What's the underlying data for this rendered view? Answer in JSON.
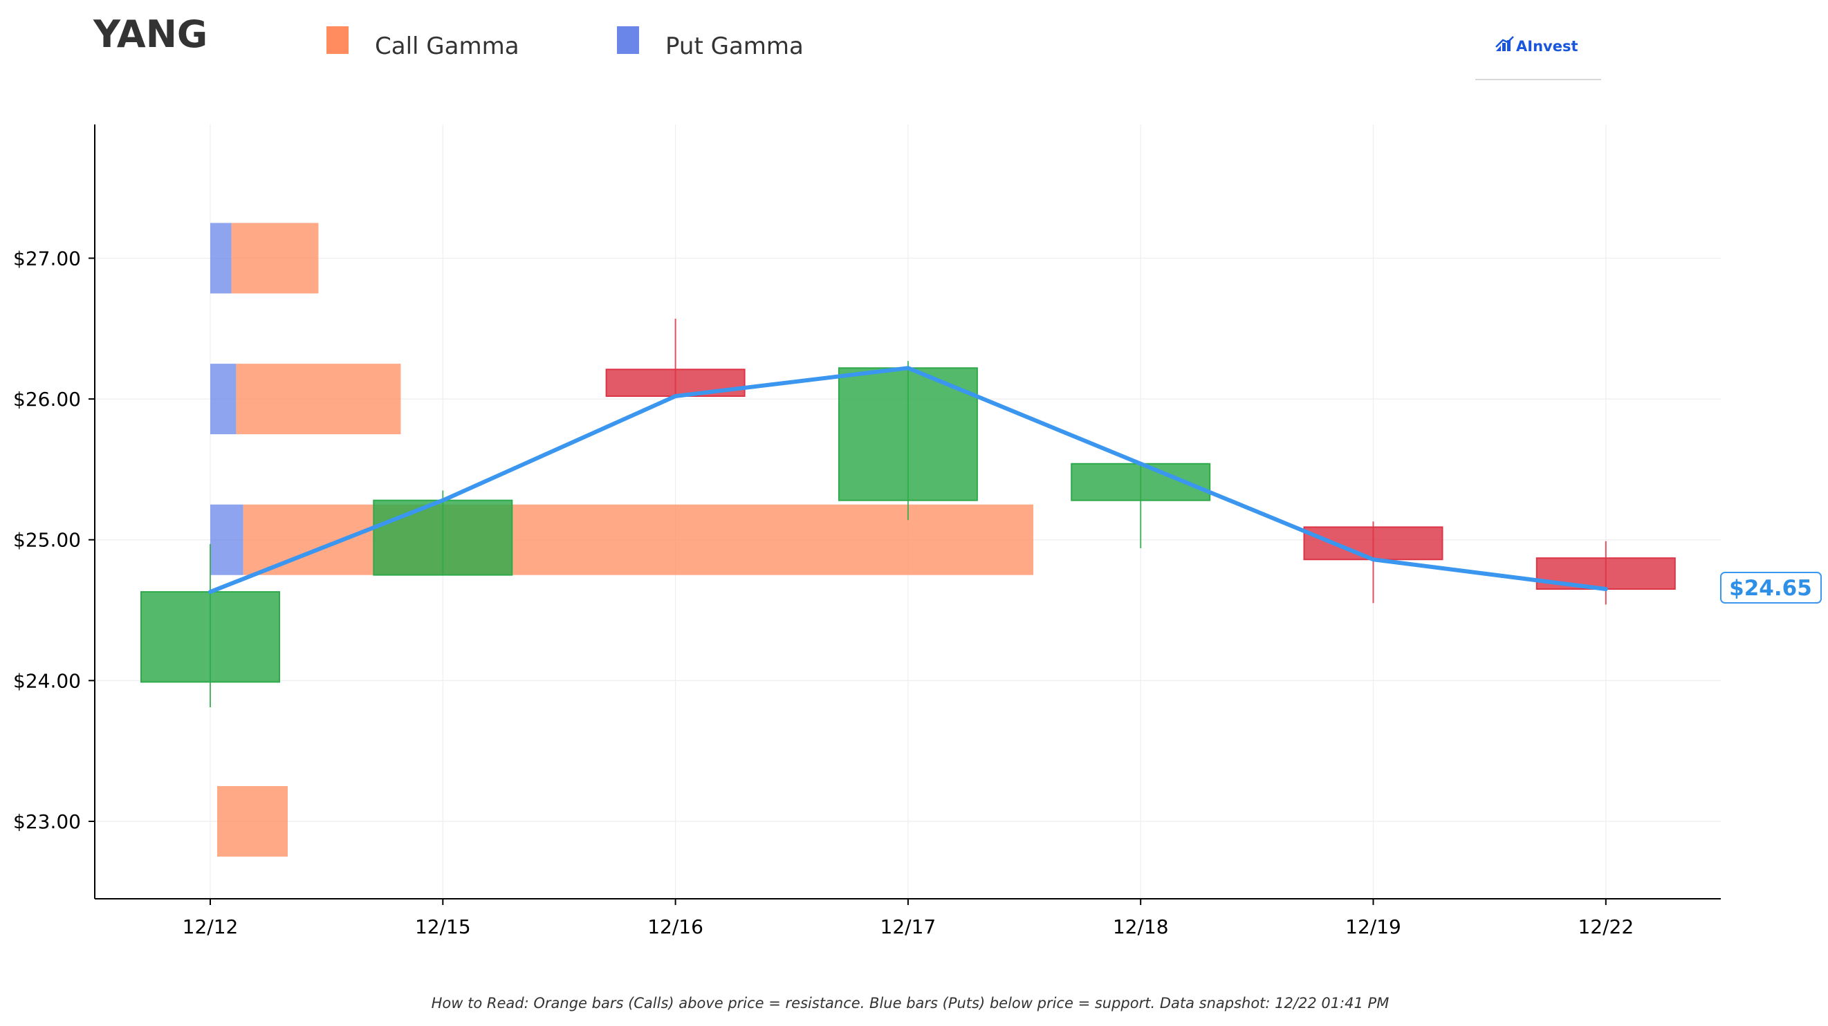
{
  "header": {
    "ticker": "YANG",
    "logo_text": "AInvest",
    "logo_icon": "bar-chart-logo-icon"
  },
  "footer": {
    "note": "How to Read: Orange bars (Calls) above price = resistance. Blue bars (Puts) below price = support. Data snapshot: 12/22 01:41 PM"
  },
  "colors": {
    "call_gamma": "#ff8c5f",
    "put_gamma": "#6a86e8",
    "up_candle": "#2eaa4a",
    "down_candle": "#dc3545",
    "price_line": "#3a96ee",
    "grid": "#eeeeee",
    "axis": "#000000"
  },
  "chart_data": {
    "type": "candlestick",
    "title": "",
    "xlabel": "",
    "ylabel": "",
    "ylim": [
      22.45,
      27.95
    ],
    "yticks": [
      23.0,
      24.0,
      25.0,
      26.0,
      27.0
    ],
    "ytick_labels": [
      "$23.00",
      "$24.00",
      "$25.00",
      "$26.00",
      "$27.00"
    ],
    "grid": true,
    "legend": {
      "placement": "top",
      "entries": [
        {
          "name": "Call Gamma",
          "color": "#ff8c5f"
        },
        {
          "name": "Put Gamma",
          "color": "#6a86e8"
        }
      ]
    },
    "categories": [
      "12/12",
      "12/15",
      "12/16",
      "12/17",
      "12/18",
      "12/19",
      "12/22"
    ],
    "ohlc": [
      {
        "date": "12/12",
        "open": 23.99,
        "high": 24.97,
        "low": 23.81,
        "close": 24.63
      },
      {
        "date": "12/15",
        "open": 24.75,
        "high": 25.35,
        "low": 24.75,
        "close": 25.28
      },
      {
        "date": "12/16",
        "open": 26.21,
        "high": 26.57,
        "low": 26.01,
        "close": 26.02
      },
      {
        "date": "12/17",
        "open": 25.28,
        "high": 26.27,
        "low": 25.14,
        "close": 26.22
      },
      {
        "date": "12/18",
        "open": 25.28,
        "high": 25.54,
        "low": 24.94,
        "close": 25.54
      },
      {
        "date": "12/19",
        "open": 25.09,
        "high": 25.13,
        "low": 24.55,
        "close": 24.86
      },
      {
        "date": "12/22",
        "open": 24.87,
        "high": 24.99,
        "low": 24.54,
        "close": 24.65
      }
    ],
    "price_line": [
      24.63,
      25.28,
      26.02,
      26.22,
      25.54,
      24.86,
      24.65
    ],
    "current_price": 24.65,
    "current_price_label": "$24.65",
    "gamma_levels": [
      {
        "strike": 27.0,
        "call_gamma": 0.37,
        "put_gamma": 0.09
      },
      {
        "strike": 26.0,
        "call_gamma": 0.7,
        "put_gamma": 0.11
      },
      {
        "strike": 25.0,
        "call_gamma": 3.36,
        "put_gamma": 0.14
      },
      {
        "strike": 23.0,
        "call_gamma": 0.3,
        "put_gamma": 0.0
      }
    ]
  }
}
